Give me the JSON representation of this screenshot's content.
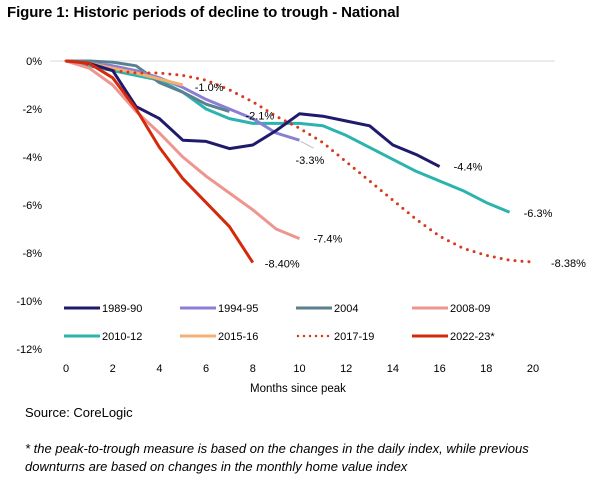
{
  "figure": {
    "title": "Figure 1: Historic periods of decline to trough - National",
    "source": "Source: CoreLogic",
    "note": "* the peak-to-trough measure is based on the changes in the daily index, while previous downturns are based on changes in the monthly home value index"
  },
  "chart_data": {
    "type": "line",
    "title": "Figure 1: Historic periods of decline to trough - National",
    "xlabel": "Months since peak",
    "ylabel": "",
    "xlim": [
      0,
      20
    ],
    "ylim": [
      -12,
      0
    ],
    "x_ticks": [
      0,
      2,
      4,
      6,
      8,
      10,
      12,
      14,
      16,
      18,
      20
    ],
    "x_tick_labels": [
      "0",
      "2",
      "4",
      "6",
      "8",
      "10",
      "12",
      "14",
      "16",
      "18",
      "20"
    ],
    "y_ticks": [
      0,
      -2,
      -4,
      -6,
      -8,
      -10,
      -12
    ],
    "y_tick_labels": [
      "0%",
      "-2%",
      "-4%",
      "-6%",
      "-8%",
      "-10%",
      "-12%"
    ],
    "grid": "horizontal zero line only",
    "legend": {
      "placement": "bottom-inside",
      "columns": 4
    },
    "series": [
      {
        "name": "1989-90",
        "color": "#1f1a6b",
        "style": "solid",
        "end_label": "-4.4%",
        "values": [
          0,
          -0.1,
          -0.4,
          -1.9,
          -2.4,
          -3.3,
          -3.35,
          -3.65,
          -3.5,
          -2.9,
          -2.2,
          -2.3,
          -2.5,
          -2.7,
          -3.5,
          -3.9,
          -4.4
        ]
      },
      {
        "name": "1994-95",
        "color": "#8a7fd4",
        "style": "solid",
        "end_label": "-3.3%",
        "values": [
          0,
          -0.1,
          -0.2,
          -0.4,
          -0.7,
          -1.1,
          -1.6,
          -2.0,
          -2.4,
          -3.0,
          -3.3
        ]
      },
      {
        "name": "2004",
        "color": "#5a8190",
        "style": "solid",
        "end_label": "-2.1%",
        "values": [
          0,
          0.0,
          -0.05,
          -0.2,
          -0.9,
          -1.3,
          -1.8,
          -2.1
        ]
      },
      {
        "name": "2008-09",
        "color": "#ee9590",
        "style": "solid",
        "end_label": "-7.4%",
        "values": [
          0,
          -0.3,
          -1.0,
          -2.1,
          -3.0,
          -4.0,
          -4.8,
          -5.5,
          -6.2,
          -7.0,
          -7.4
        ]
      },
      {
        "name": "2010-12",
        "color": "#2bb3ae",
        "style": "solid",
        "end_label": "-6.3%",
        "values": [
          0,
          -0.2,
          -0.4,
          -0.6,
          -0.8,
          -1.3,
          -2.0,
          -2.4,
          -2.6,
          -2.6,
          -2.6,
          -2.7,
          -3.1,
          -3.6,
          -4.1,
          -4.6,
          -5.0,
          -5.4,
          -5.9,
          -6.3
        ]
      },
      {
        "name": "2015-16",
        "color": "#f2b071",
        "style": "solid",
        "end_label": "-1.0%",
        "values": [
          0,
          -0.1,
          -0.3,
          -0.5,
          -0.75,
          -1.0
        ]
      },
      {
        "name": "2017-19",
        "color": "#d9391e",
        "style": "dotted",
        "end_label": "-8.38%",
        "values": [
          0,
          -0.2,
          -0.4,
          -0.5,
          -0.5,
          -0.6,
          -0.8,
          -1.2,
          -1.7,
          -2.3,
          -2.8,
          -3.4,
          -4.2,
          -5.0,
          -5.8,
          -6.6,
          -7.3,
          -7.8,
          -8.1,
          -8.3,
          -8.38
        ]
      },
      {
        "name": "2022-23*",
        "color": "#d42a0c",
        "style": "solid",
        "end_label": "-8.40%",
        "values": [
          0,
          -0.1,
          -0.7,
          -2.0,
          -3.6,
          -4.9,
          -5.9,
          -6.9,
          -8.4
        ]
      }
    ]
  }
}
